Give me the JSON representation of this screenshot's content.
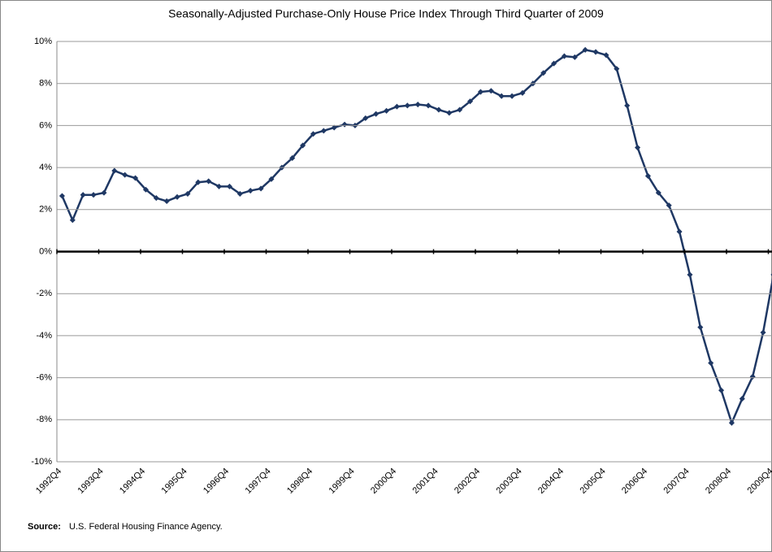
{
  "chart_data": {
    "type": "line",
    "title": "Seasonally-Adjusted Purchase-Only House Price Index Through Third Quarter of 2009",
    "categories": [
      "1992Q4",
      null,
      null,
      null,
      "1993Q4",
      null,
      null,
      null,
      "1994Q4",
      null,
      null,
      null,
      "1995Q4",
      null,
      null,
      null,
      "1996Q4",
      null,
      null,
      null,
      "1997Q4",
      null,
      null,
      null,
      "1998Q4",
      null,
      null,
      null,
      "1999Q4",
      null,
      null,
      null,
      "2000Q4",
      null,
      null,
      null,
      "2001Q4",
      null,
      null,
      null,
      "2002Q4",
      null,
      null,
      null,
      "2003Q4",
      null,
      null,
      null,
      "2004Q4",
      null,
      null,
      null,
      "2005Q4",
      null,
      null,
      null,
      "2006Q4",
      null,
      null,
      null,
      "2007Q4",
      null,
      null,
      null,
      "2008Q4",
      null,
      null,
      null,
      "2009Q4"
    ],
    "series": [
      {
        "name": "Purchase-Only House Price Index",
        "color": "#1f3864",
        "values": [
          2.65,
          1.5,
          2.7,
          2.7,
          2.8,
          3.85,
          3.65,
          3.5,
          2.95,
          2.55,
          2.4,
          2.6,
          2.75,
          3.3,
          3.35,
          3.1,
          3.1,
          2.75,
          2.9,
          3.0,
          3.45,
          4.0,
          4.45,
          5.05,
          5.6,
          5.75,
          5.9,
          6.05,
          6.0,
          6.35,
          6.55,
          6.7,
          6.9,
          6.95,
          7.0,
          6.95,
          6.75,
          6.6,
          6.75,
          7.15,
          7.6,
          7.65,
          7.4,
          7.4,
          7.55,
          8.0,
          8.5,
          8.95,
          9.3,
          9.25,
          9.6,
          9.5,
          9.35,
          8.7,
          6.95,
          4.95,
          3.6,
          2.8,
          2.2,
          0.95,
          -1.1,
          -3.6,
          -5.3,
          -6.6,
          -8.15,
          -7.0,
          -5.95,
          -3.85,
          -1.1
        ]
      }
    ],
    "ylim": [
      -10,
      10
    ],
    "yticks": [
      {
        "value": -10,
        "label": "-10%"
      },
      {
        "value": -8,
        "label": "-8%"
      },
      {
        "value": -6,
        "label": "-6%"
      },
      {
        "value": -4,
        "label": "-4%"
      },
      {
        "value": -2,
        "label": "-2%"
      },
      {
        "value": 0,
        "label": "0%"
      },
      {
        "value": 2,
        "label": "2%"
      },
      {
        "value": 4,
        "label": "4%"
      },
      {
        "value": 6,
        "label": "6%"
      },
      {
        "value": 8,
        "label": "8%"
      },
      {
        "value": 10,
        "label": "10%"
      }
    ],
    "grid": true,
    "source_label": "Source:",
    "source": "U.S. Federal Housing Finance  Agency."
  }
}
